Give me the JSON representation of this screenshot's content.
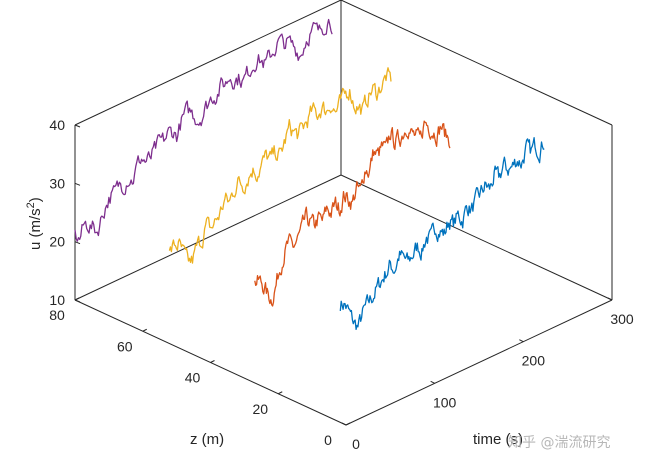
{
  "chart_data": {
    "type": "line",
    "view": "3d",
    "title": "",
    "xlabel": "time (s)",
    "ylabel": "z (m)",
    "zlabel": "u (m/s",
    "zlabel_sup": "2",
    "zlabel_close": ")",
    "xlim": [
      0,
      300
    ],
    "ylim": [
      0,
      80
    ],
    "zlim": [
      10,
      40
    ],
    "xticks": [
      "0",
      "100",
      "200",
      "300"
    ],
    "yticks": [
      "0",
      "20",
      "40",
      "60",
      "80"
    ],
    "zticks": [
      "10",
      "20",
      "30",
      "40"
    ],
    "grid": false,
    "series": [
      {
        "color": "#0072BD",
        "z_height": 20,
        "x_start": 70,
        "x_end": 300,
        "values": [
          20.5,
          20,
          18,
          16,
          15,
          17,
          18,
          19,
          20,
          21,
          22,
          23,
          22,
          24,
          23,
          22,
          23,
          24,
          23,
          25,
          24,
          26,
          25,
          24,
          26,
          25,
          26,
          25,
          27,
          26,
          27,
          28,
          29,
          28,
          30,
          29,
          31,
          30,
          30,
          31,
          30,
          32,
          31,
          32,
          31,
          32
        ]
      },
      {
        "color": "#D95319",
        "z_height": 40,
        "x_start": 50,
        "x_end": 270,
        "values": [
          20,
          20,
          19,
          17,
          16,
          18,
          21,
          23,
          24,
          23,
          24,
          25,
          27,
          26,
          25,
          26,
          25,
          27,
          26,
          27,
          26,
          28,
          27,
          26,
          28,
          27,
          31,
          30,
          33,
          32,
          33,
          32,
          35,
          33,
          33,
          34,
          35,
          33,
          32,
          31,
          34,
          33,
          32,
          31,
          32,
          30,
          29
        ]
      },
      {
        "color": "#EDB120",
        "z_height": 60,
        "x_start": 30,
        "x_end": 280,
        "values": [
          21,
          22,
          22,
          20,
          18,
          18,
          20,
          21,
          23,
          22,
          23,
          24,
          26,
          25,
          27,
          28,
          27,
          28,
          29,
          28,
          29,
          30,
          29,
          30,
          29,
          31,
          33,
          32,
          31,
          32,
          33,
          34,
          33,
          34,
          33,
          34,
          32,
          33,
          34,
          35,
          32,
          31,
          30,
          32,
          33,
          32,
          33,
          34,
          33
        ]
      },
      {
        "color": "#7E2F8E",
        "z_height": 80,
        "x_start": 0,
        "x_end": 290,
        "values": [
          21,
          20,
          22,
          22,
          21,
          20,
          22,
          24,
          25,
          25,
          26,
          26,
          27,
          26,
          28,
          29,
          28,
          28,
          29,
          30,
          30,
          31,
          31,
          30,
          32,
          33,
          33,
          32,
          31,
          32,
          33,
          34,
          34,
          35,
          35,
          36,
          35,
          35,
          34,
          35,
          36,
          37,
          36,
          35,
          36,
          37,
          38,
          37,
          37,
          36,
          35,
          34,
          36,
          37,
          37,
          36,
          37,
          38,
          37
        ]
      }
    ]
  },
  "watermark": "知乎 @湍流研究"
}
